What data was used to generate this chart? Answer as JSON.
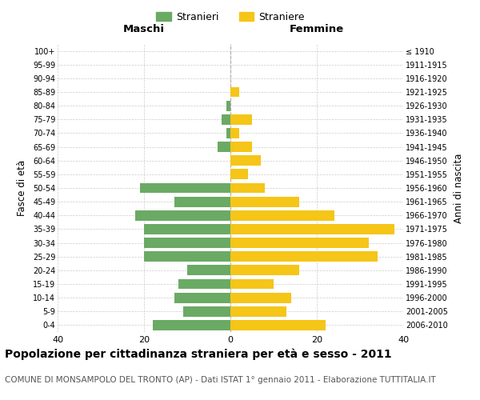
{
  "age_groups": [
    "0-4",
    "5-9",
    "10-14",
    "15-19",
    "20-24",
    "25-29",
    "30-34",
    "35-39",
    "40-44",
    "45-49",
    "50-54",
    "55-59",
    "60-64",
    "65-69",
    "70-74",
    "75-79",
    "80-84",
    "85-89",
    "90-94",
    "95-99",
    "100+"
  ],
  "birth_years": [
    "2006-2010",
    "2001-2005",
    "1996-2000",
    "1991-1995",
    "1986-1990",
    "1981-1985",
    "1976-1980",
    "1971-1975",
    "1966-1970",
    "1961-1965",
    "1956-1960",
    "1951-1955",
    "1946-1950",
    "1941-1945",
    "1936-1940",
    "1931-1935",
    "1926-1930",
    "1921-1925",
    "1916-1920",
    "1911-1915",
    "≤ 1910"
  ],
  "males": [
    18,
    11,
    13,
    12,
    10,
    20,
    20,
    20,
    22,
    13,
    21,
    0,
    0,
    3,
    1,
    2,
    1,
    0,
    0,
    0,
    0
  ],
  "females": [
    22,
    13,
    14,
    10,
    16,
    34,
    32,
    38,
    24,
    16,
    8,
    4,
    7,
    5,
    2,
    5,
    0,
    2,
    0,
    0,
    0
  ],
  "male_color": "#6aaa64",
  "female_color": "#f5c518",
  "background_color": "#ffffff",
  "grid_color": "#cccccc",
  "title": "Popolazione per cittadinanza straniera per età e sesso - 2011",
  "subtitle": "COMUNE DI MONSAMPOLO DEL TRONTO (AP) - Dati ISTAT 1° gennaio 2011 - Elaborazione TUTTITALIA.IT",
  "ylabel_left": "Fasce di età",
  "ylabel_right": "Anni di nascita",
  "xlabel_left": "Maschi",
  "xlabel_right": "Femmine",
  "legend_stranieri": "Stranieri",
  "legend_straniere": "Straniere",
  "xlim": 40,
  "title_fontsize": 10,
  "subtitle_fontsize": 7.5,
  "bar_height": 0.75
}
